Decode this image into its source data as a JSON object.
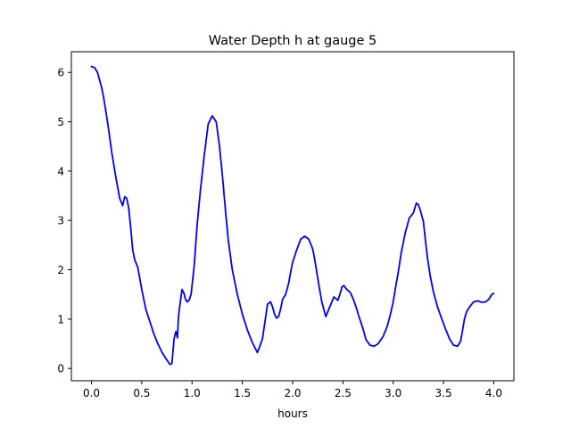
{
  "chart_data": {
    "type": "line",
    "title": "Water Depth h at gauge 5",
    "xlabel": "hours",
    "ylabel": "",
    "xlim": [
      -0.2,
      4.2
    ],
    "ylim": [
      -0.25,
      6.42
    ],
    "xticks": [
      0.0,
      0.5,
      1.0,
      1.5,
      2.0,
      2.5,
      3.0,
      3.5,
      4.0
    ],
    "xtick_labels": [
      "0.0",
      "0.5",
      "1.0",
      "1.5",
      "2.0",
      "2.5",
      "3.0",
      "3.5",
      "4.0"
    ],
    "yticks": [
      0,
      1,
      2,
      3,
      4,
      5,
      6
    ],
    "ytick_labels": [
      "0",
      "1",
      "2",
      "3",
      "4",
      "5",
      "6"
    ],
    "grid": false,
    "series": [
      {
        "color": "#0000ff",
        "x": [
          0.0,
          0.03,
          0.06,
          0.08,
          0.1,
          0.12,
          0.14,
          0.17,
          0.2,
          0.24,
          0.28,
          0.31,
          0.33,
          0.35,
          0.37,
          0.39,
          0.41,
          0.43,
          0.46,
          0.5,
          0.54,
          0.58,
          0.62,
          0.66,
          0.7,
          0.74,
          0.78,
          0.8,
          0.82,
          0.83,
          0.84,
          0.855,
          0.865,
          0.875,
          0.89,
          0.9,
          0.92,
          0.935,
          0.95,
          0.97,
          0.99,
          1.02,
          1.05,
          1.08,
          1.12,
          1.16,
          1.2,
          1.24,
          1.27,
          1.3,
          1.33,
          1.36,
          1.4,
          1.45,
          1.5,
          1.55,
          1.6,
          1.65,
          1.7,
          1.75,
          1.78,
          1.8,
          1.82,
          1.84,
          1.86,
          1.88,
          1.9,
          1.93,
          1.96,
          1.98,
          2.0,
          2.04,
          2.08,
          2.12,
          2.16,
          2.2,
          2.22,
          2.24,
          2.26,
          2.29,
          2.33,
          2.37,
          2.41,
          2.45,
          2.47,
          2.49,
          2.51,
          2.53,
          2.55,
          2.57,
          2.6,
          2.63,
          2.66,
          2.7,
          2.73,
          2.77,
          2.81,
          2.85,
          2.9,
          2.94,
          2.97,
          3.0,
          3.02,
          3.05,
          3.08,
          3.12,
          3.16,
          3.2,
          3.23,
          3.25,
          3.27,
          3.3,
          3.32,
          3.34,
          3.37,
          3.4,
          3.44,
          3.48,
          3.52,
          3.56,
          3.6,
          3.64,
          3.67,
          3.69,
          3.71,
          3.73,
          3.76,
          3.8,
          3.84,
          3.88,
          3.92,
          3.95,
          3.98,
          4.0
        ],
        "y": [
          6.12,
          6.1,
          6.0,
          5.85,
          5.7,
          5.5,
          5.25,
          4.85,
          4.4,
          3.9,
          3.45,
          3.3,
          3.48,
          3.45,
          3.25,
          2.85,
          2.4,
          2.2,
          2.05,
          1.6,
          1.2,
          0.95,
          0.7,
          0.5,
          0.33,
          0.2,
          0.08,
          0.1,
          0.58,
          0.68,
          0.75,
          0.62,
          1.05,
          1.22,
          1.45,
          1.6,
          1.52,
          1.4,
          1.35,
          1.38,
          1.5,
          2.05,
          2.9,
          3.55,
          4.3,
          4.95,
          5.12,
          5.0,
          4.55,
          3.95,
          3.25,
          2.6,
          2.0,
          1.5,
          1.1,
          0.78,
          0.52,
          0.32,
          0.6,
          1.3,
          1.35,
          1.25,
          1.1,
          1.02,
          1.05,
          1.2,
          1.4,
          1.5,
          1.72,
          1.95,
          2.15,
          2.4,
          2.62,
          2.68,
          2.62,
          2.42,
          2.2,
          1.95,
          1.7,
          1.35,
          1.05,
          1.25,
          1.45,
          1.38,
          1.5,
          1.65,
          1.68,
          1.62,
          1.58,
          1.55,
          1.42,
          1.25,
          1.05,
          0.8,
          0.58,
          0.47,
          0.45,
          0.5,
          0.65,
          0.85,
          1.08,
          1.35,
          1.6,
          1.95,
          2.35,
          2.75,
          3.05,
          3.15,
          3.35,
          3.32,
          3.2,
          2.98,
          2.6,
          2.25,
          1.85,
          1.55,
          1.25,
          1.02,
          0.8,
          0.6,
          0.47,
          0.45,
          0.55,
          0.78,
          1.02,
          1.15,
          1.25,
          1.35,
          1.37,
          1.34,
          1.35,
          1.4,
          1.5,
          1.52
        ]
      }
    ]
  }
}
